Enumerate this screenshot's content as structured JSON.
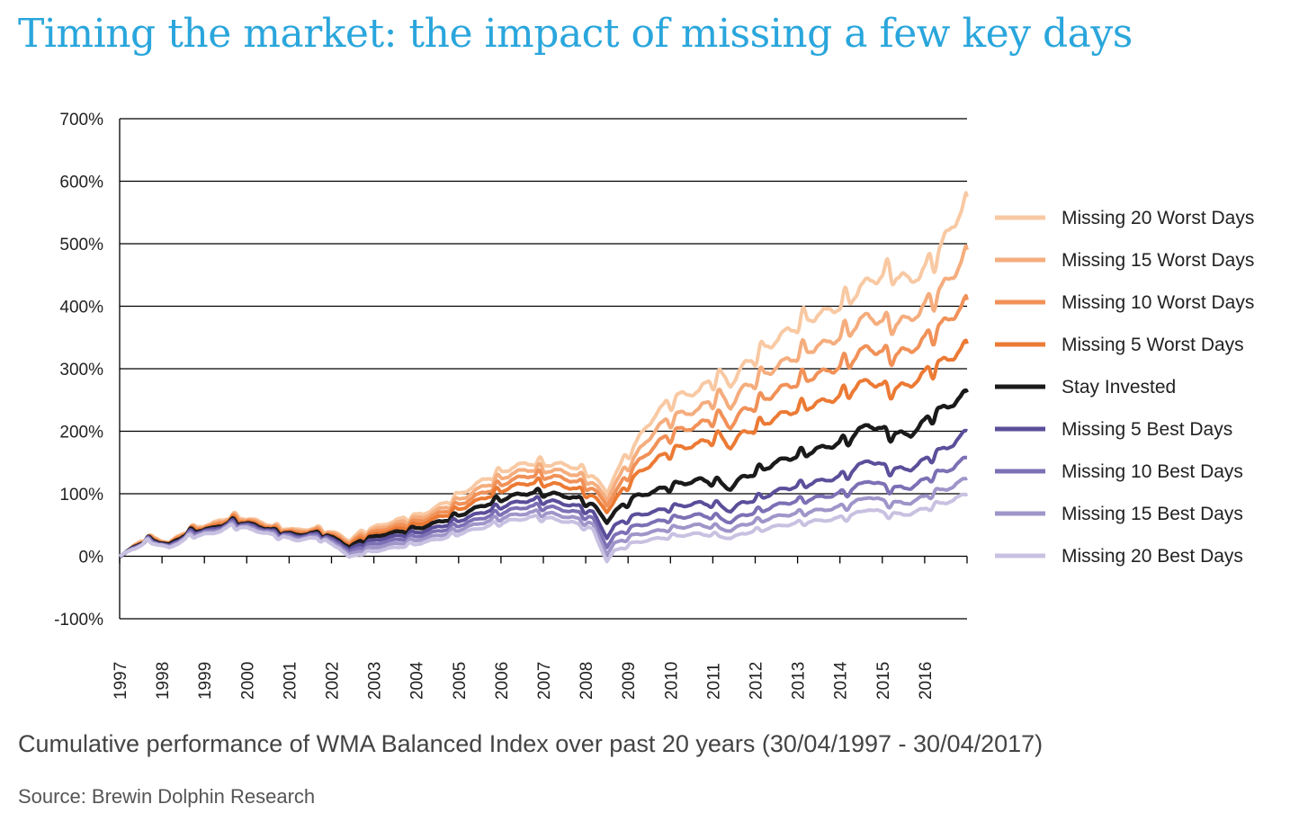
{
  "page": {
    "title": "Timing the market: the impact of missing a few key days",
    "caption": "Cumulative performance of WMA Balanced Index over past 20 years (30/04/1997 - 30/04/2017)",
    "source": "Source: Brewin Dolphin Research"
  },
  "chart_data": {
    "type": "line",
    "title": "Timing the market: the impact of missing a few key days",
    "xlabel": "",
    "ylabel": "",
    "xlim": [
      1997.33,
      2017.33
    ],
    "ylim": [
      -100,
      700
    ],
    "y_unit": "%",
    "y_ticks": [
      -100,
      0,
      100,
      200,
      300,
      400,
      500,
      600,
      700
    ],
    "y_tick_labels": [
      "-100%",
      "0%",
      "100%",
      "200%",
      "300%",
      "400%",
      "500%",
      "600%",
      "700%"
    ],
    "x_tick_labels": [
      "1997",
      "1998",
      "1999",
      "2000",
      "2001",
      "2002",
      "2003",
      "2004",
      "2005",
      "2006",
      "2007",
      "2008",
      "2009",
      "2010",
      "2011",
      "2012",
      "2013",
      "2014",
      "2015",
      "2016"
    ],
    "grid": "horizontal",
    "legend_position": "right",
    "x": [
      1997.33,
      1998.0,
      1998.5,
      1999.0,
      1999.5,
      2000.0,
      2000.5,
      2001.0,
      2001.5,
      2002.0,
      2002.5,
      2002.75,
      2003.0,
      2003.5,
      2004.0,
      2004.5,
      2005.0,
      2005.5,
      2006.0,
      2006.5,
      2007.0,
      2007.5,
      2008.0,
      2008.5,
      2008.83,
      2009.0,
      2009.5,
      2010.0,
      2010.5,
      2011.0,
      2011.5,
      2011.75,
      2012.0,
      2012.5,
      2013.0,
      2013.5,
      2014.0,
      2014.5,
      2015.0,
      2015.5,
      2016.0,
      2016.5,
      2017.0,
      2017.33
    ],
    "series": [
      {
        "name": "Missing 20 Worst Days",
        "color": "#f8c9a3",
        "width": 4,
        "values": [
          0,
          32,
          22,
          45,
          52,
          65,
          58,
          48,
          42,
          45,
          35,
          25,
          38,
          50,
          60,
          68,
          85,
          105,
          125,
          140,
          150,
          148,
          145,
          130,
          100,
          130,
          180,
          230,
          255,
          265,
          290,
          275,
          300,
          330,
          355,
          380,
          390,
          410,
          440,
          455,
          440,
          470,
          530,
          575
        ]
      },
      {
        "name": "Missing 15 Worst Days",
        "color": "#f5ad7e",
        "width": 4,
        "values": [
          0,
          31,
          21,
          44,
          50,
          63,
          56,
          46,
          40,
          43,
          33,
          22,
          34,
          46,
          55,
          63,
          78,
          96,
          115,
          130,
          140,
          138,
          133,
          118,
          90,
          115,
          160,
          205,
          225,
          235,
          258,
          240,
          265,
          290,
          310,
          330,
          340,
          360,
          385,
          370,
          380,
          410,
          450,
          490
        ]
      },
      {
        "name": "Missing 10 Worst Days",
        "color": "#f19158",
        "width": 4,
        "values": [
          0,
          30,
          20,
          43,
          48,
          61,
          54,
          44,
          38,
          41,
          30,
          20,
          31,
          42,
          50,
          58,
          72,
          88,
          105,
          120,
          130,
          128,
          122,
          108,
          82,
          100,
          145,
          180,
          200,
          210,
          225,
          208,
          230,
          250,
          270,
          285,
          295,
          310,
          335,
          320,
          330,
          355,
          385,
          410
        ]
      },
      {
        "name": "Missing 5 Worst Days",
        "color": "#ec7a34",
        "width": 4,
        "values": [
          0,
          29,
          19,
          42,
          46,
          59,
          52,
          42,
          36,
          39,
          28,
          17,
          28,
          38,
          45,
          53,
          66,
          80,
          96,
          110,
          118,
          116,
          110,
          96,
          72,
          88,
          128,
          155,
          172,
          180,
          192,
          175,
          195,
          212,
          228,
          240,
          248,
          262,
          282,
          265,
          275,
          300,
          320,
          340
        ]
      },
      {
        "name": "Stay Invested",
        "color": "#1a1a1a",
        "width": 4.5,
        "values": [
          0,
          28,
          18,
          40,
          44,
          56,
          50,
          40,
          34,
          37,
          26,
          14,
          24,
          34,
          40,
          47,
          58,
          70,
          84,
          95,
          102,
          100,
          95,
          82,
          55,
          70,
          95,
          105,
          115,
          122,
          118,
          108,
          125,
          140,
          155,
          165,
          175,
          185,
          212,
          195,
          195,
          225,
          245,
          262
        ]
      },
      {
        "name": "Missing 5 Best Days",
        "color": "#5b4e9a",
        "width": 4,
        "values": [
          0,
          27,
          16,
          38,
          42,
          54,
          48,
          38,
          32,
          35,
          23,
          10,
          19,
          28,
          34,
          40,
          50,
          61,
          73,
          83,
          90,
          88,
          82,
          70,
          30,
          48,
          65,
          72,
          80,
          85,
          82,
          72,
          85,
          95,
          108,
          115,
          122,
          130,
          155,
          138,
          140,
          160,
          180,
          200
        ]
      },
      {
        "name": "Missing 10 Best Days",
        "color": "#7d70b5",
        "width": 4,
        "values": [
          0,
          26,
          15,
          36,
          40,
          52,
          46,
          36,
          30,
          33,
          20,
          6,
          14,
          22,
          28,
          34,
          43,
          53,
          64,
          73,
          80,
          78,
          72,
          60,
          15,
          32,
          48,
          55,
          62,
          66,
          62,
          54,
          65,
          74,
          85,
          90,
          96,
          102,
          122,
          108,
          110,
          128,
          142,
          158
        ]
      },
      {
        "name": "Missing 15 Best Days",
        "color": "#a095c9",
        "width": 4,
        "values": [
          0,
          25,
          14,
          34,
          38,
          50,
          44,
          34,
          28,
          31,
          17,
          2,
          9,
          16,
          22,
          28,
          36,
          46,
          56,
          64,
          70,
          68,
          62,
          50,
          3,
          20,
          34,
          40,
          46,
          50,
          46,
          40,
          50,
          58,
          66,
          70,
          75,
          80,
          96,
          84,
          86,
          100,
          112,
          125
        ]
      },
      {
        "name": "Missing 20 Best Days",
        "color": "#c9c1e1",
        "width": 4,
        "values": [
          0,
          24,
          13,
          32,
          36,
          48,
          42,
          32,
          26,
          29,
          14,
          -2,
          4,
          10,
          16,
          22,
          30,
          39,
          48,
          56,
          62,
          60,
          54,
          42,
          -8,
          8,
          22,
          28,
          33,
          36,
          33,
          28,
          36,
          43,
          50,
          54,
          58,
          62,
          76,
          66,
          68,
          80,
          90,
          100
        ]
      }
    ]
  }
}
